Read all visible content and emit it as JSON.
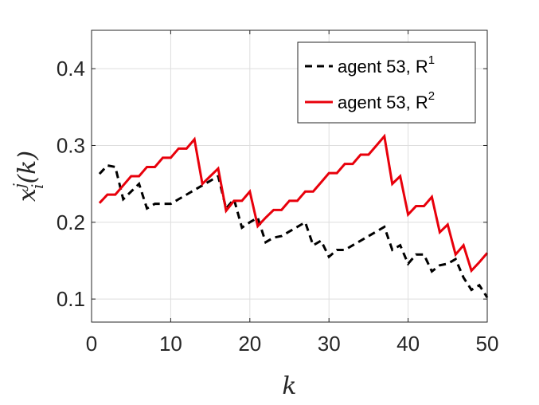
{
  "chart_data": {
    "type": "line",
    "xlabel": "k",
    "ylabel": "x_i^j(k)",
    "xlim": [
      0,
      50
    ],
    "ylim": [
      0.07,
      0.45
    ],
    "xticks": [
      0,
      10,
      20,
      30,
      40,
      50
    ],
    "yticks": [
      0.1,
      0.2,
      0.3,
      0.4
    ],
    "xtick_labels": [
      "0",
      "10",
      "20",
      "30",
      "40",
      "50"
    ],
    "ytick_labels": [
      "0.1",
      "0.2",
      "0.3",
      "0.4"
    ],
    "grid": true,
    "legend_position": "top-right",
    "x": [
      1,
      2,
      3,
      4,
      5,
      6,
      7,
      8,
      9,
      10,
      11,
      12,
      13,
      14,
      15,
      16,
      17,
      18,
      19,
      20,
      21,
      22,
      23,
      24,
      25,
      26,
      27,
      28,
      29,
      30,
      31,
      32,
      33,
      34,
      35,
      36,
      37,
      38,
      39,
      40,
      41,
      42,
      43,
      44,
      45,
      46,
      47,
      48,
      49,
      50
    ],
    "series": [
      {
        "name_main": "agent 53, R",
        "name_sup": "1",
        "color": "#000000",
        "dash": "dashed",
        "values": [
          0.263,
          0.274,
          0.272,
          0.23,
          0.24,
          0.25,
          0.218,
          0.224,
          0.224,
          0.224,
          0.23,
          0.236,
          0.242,
          0.248,
          0.254,
          0.26,
          0.218,
          0.23,
          0.193,
          0.2,
          0.206,
          0.174,
          0.18,
          0.182,
          0.188,
          0.194,
          0.2,
          0.17,
          0.176,
          0.155,
          0.164,
          0.164,
          0.17,
          0.176,
          0.182,
          0.188,
          0.194,
          0.164,
          0.17,
          0.146,
          0.158,
          0.158,
          0.136,
          0.144,
          0.146,
          0.152,
          0.128,
          0.112,
          0.118,
          0.102
        ]
      },
      {
        "name_main": "agent 53, R",
        "name_sup": "2",
        "color": "#e8000b",
        "dash": "solid",
        "values": [
          0.225,
          0.236,
          0.236,
          0.248,
          0.26,
          0.26,
          0.272,
          0.272,
          0.284,
          0.284,
          0.296,
          0.296,
          0.308,
          0.25,
          0.26,
          0.27,
          0.215,
          0.228,
          0.228,
          0.24,
          0.195,
          0.206,
          0.216,
          0.216,
          0.228,
          0.228,
          0.24,
          0.24,
          0.252,
          0.264,
          0.264,
          0.276,
          0.276,
          0.288,
          0.288,
          0.3,
          0.312,
          0.25,
          0.26,
          0.21,
          0.221,
          0.221,
          0.233,
          0.187,
          0.197,
          0.158,
          0.17,
          0.137,
          0.148,
          0.16
        ]
      }
    ]
  }
}
